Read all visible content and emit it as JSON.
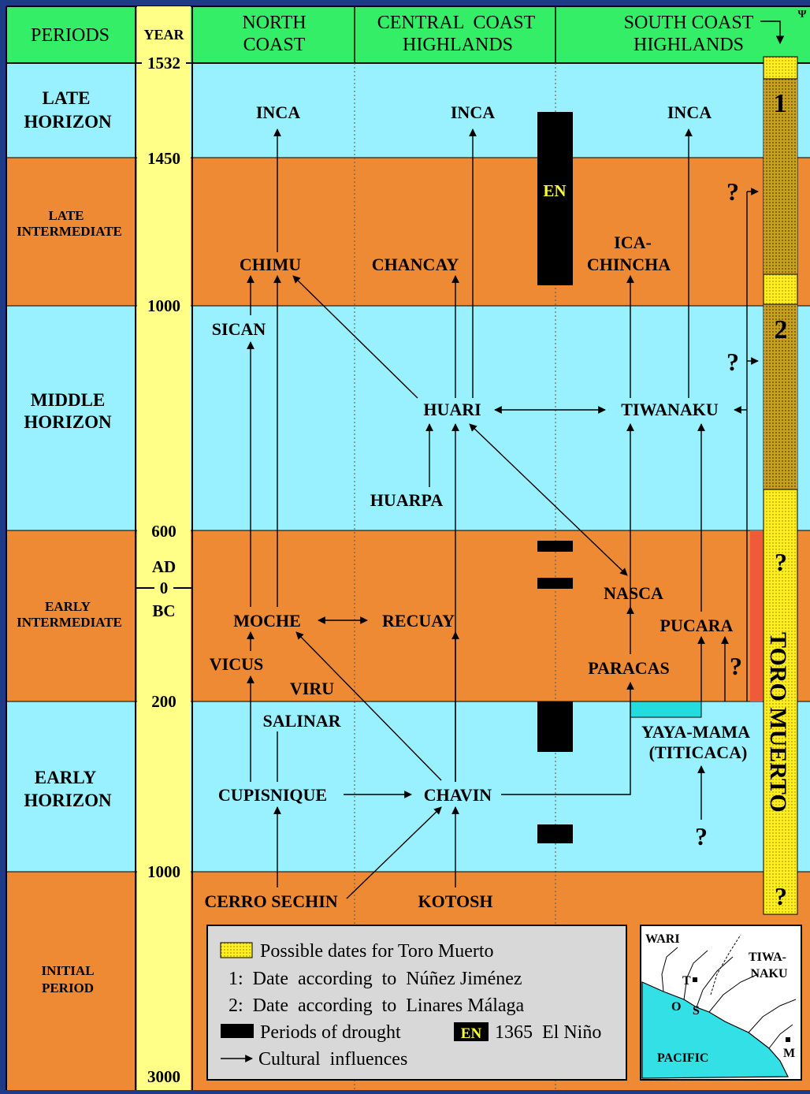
{
  "colors": {
    "header": "#33ee66",
    "horizon": "#99f0ff",
    "intermediate": "#ee8a33",
    "year_column": "#ffff88",
    "toro_muerto": "#ffee22",
    "drought": "#000000",
    "teal_bar": "#22dddd"
  },
  "header": {
    "periods": "PERIODS",
    "year": "YEAR",
    "north_coast": [
      "NORTH",
      "COAST"
    ],
    "central": [
      "CENTRAL  COAST",
      "HIGHLANDS"
    ],
    "south": [
      "SOUTH COAST",
      "HIGHLANDS"
    ]
  },
  "periods": {
    "late_horizon": [
      "LATE",
      "HORIZON"
    ],
    "late_intermediate": [
      "LATE",
      "INTERMEDIATE"
    ],
    "middle_horizon": [
      "MIDDLE",
      "HORIZON"
    ],
    "early_intermediate": [
      "EARLY",
      "INTERMEDIATE"
    ],
    "early_horizon": [
      "EARLY",
      "HORIZON"
    ],
    "initial_period": [
      "INITIAL",
      "PERIOD"
    ]
  },
  "years": {
    "y1532": "1532",
    "y1450": "1450",
    "y1000": "1000",
    "y600": "600",
    "ad": "AD",
    "zero": "0",
    "bc": "BC",
    "y200": "200",
    "y1000bc": "1000",
    "y3000": "3000"
  },
  "cultures": {
    "inca": "INCA",
    "chimu": "CHIMU",
    "chancay": "CHANCAY",
    "ica": "ICA-",
    "chincha": "CHINCHA",
    "sican": "SICAN",
    "huari": "HUARI",
    "tiwanaku": "TIWANAKU",
    "huarpa": "HUARPA",
    "nasca": "NASCA",
    "moche": "MOCHE",
    "recuay": "RECUAY",
    "pucara": "PUCARA",
    "vicus": "VICUS",
    "paracas": "PARACAS",
    "viru": "VIRU",
    "salinar": "SALINAR",
    "yaya_mama": "YAYA-MAMA",
    "titicaca": "(TITICACA)",
    "cupisnique": "CUPISNIQUE",
    "chavin": "CHAVIN",
    "cerro_sechin": "CERRO SECHIN",
    "kotosh": "KOTOSH"
  },
  "en_label": "EN",
  "question": "?",
  "toro_muerto": {
    "label": "TORO MUERTO",
    "marker1": "1",
    "marker2": "2"
  },
  "legend": {
    "possible": "Possible dates for Toro Muerto",
    "date1": "1:  Date  according  to  Núñez Jiménez",
    "date2": "2:  Date  according  to  Linares Málaga",
    "drought": "Periods of drought",
    "en_badge": "EN",
    "el_nino": "1365  El Niño",
    "influences": "Cultural  influences"
  },
  "map": {
    "wari": "WARI",
    "tiwa": "TIWA-",
    "naku": "NAKU",
    "t": "T",
    "o": "O",
    "s": "S",
    "pacific": "PACIFIC",
    "m": "M"
  }
}
